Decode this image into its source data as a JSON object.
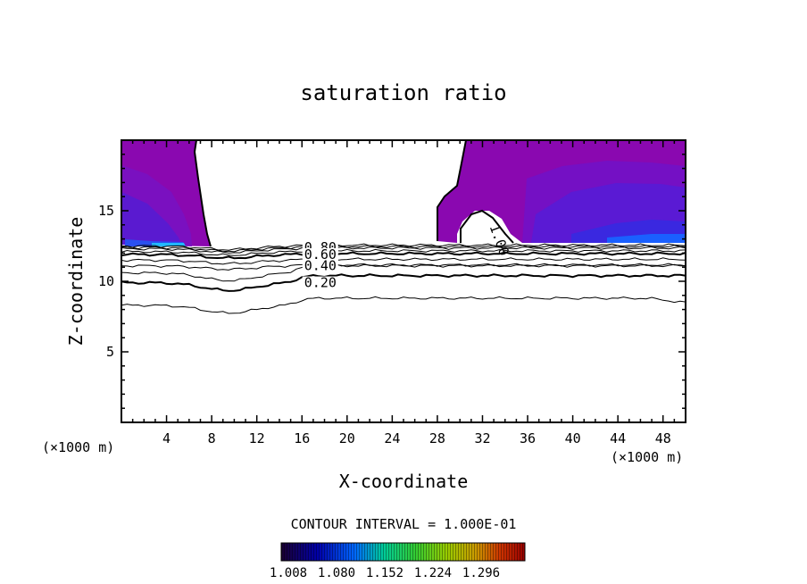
{
  "chart_data": {
    "type": "contour",
    "title": "saturation ratio",
    "xlabel": "X-coordinate",
    "ylabel": "Z-coordinate",
    "x_unit_label_left": "(×1000 m)",
    "x_unit_label_right": "(×1000 m)",
    "xlim": [
      0,
      50
    ],
    "ylim": [
      0,
      20
    ],
    "x_ticks": [
      4,
      8,
      12,
      16,
      20,
      24,
      28,
      32,
      36,
      40,
      44,
      48
    ],
    "y_ticks": [
      5,
      10,
      15
    ],
    "contour_interval_text": "CONTOUR INTERVAL = 1.000E-01",
    "contour_labels": [
      {
        "text": "0.80",
        "x": 16.2,
        "z": 12.4
      },
      {
        "text": "0.60",
        "x": 16.2,
        "z": 11.9
      },
      {
        "text": "0.40",
        "x": 16.2,
        "z": 11.1
      },
      {
        "text": "0.20",
        "x": 16.2,
        "z": 9.9
      },
      {
        "text": "1.00",
        "x": 33.0,
        "z": 14.0
      }
    ],
    "contour_lines_z_at_x0": [
      8.3,
      9.9,
      10.6,
      11.1,
      11.5,
      11.9,
      12.1,
      12.3,
      12.4,
      12.5
    ],
    "colorbar": {
      "tick_labels": [
        "1.008",
        "1.080",
        "1.152",
        "1.224",
        "1.296"
      ],
      "colors": [
        "#1a0030",
        "#0000aa",
        "#0066ff",
        "#00cc99",
        "#33cc33",
        "#99cc00",
        "#cc9900",
        "#cc3300",
        "#990000"
      ]
    },
    "fill_colors": {
      "low": "#8a08b0",
      "mid": "#6a18c8",
      "high": "#3a20d8",
      "peak": "#1a60ff"
    }
  }
}
